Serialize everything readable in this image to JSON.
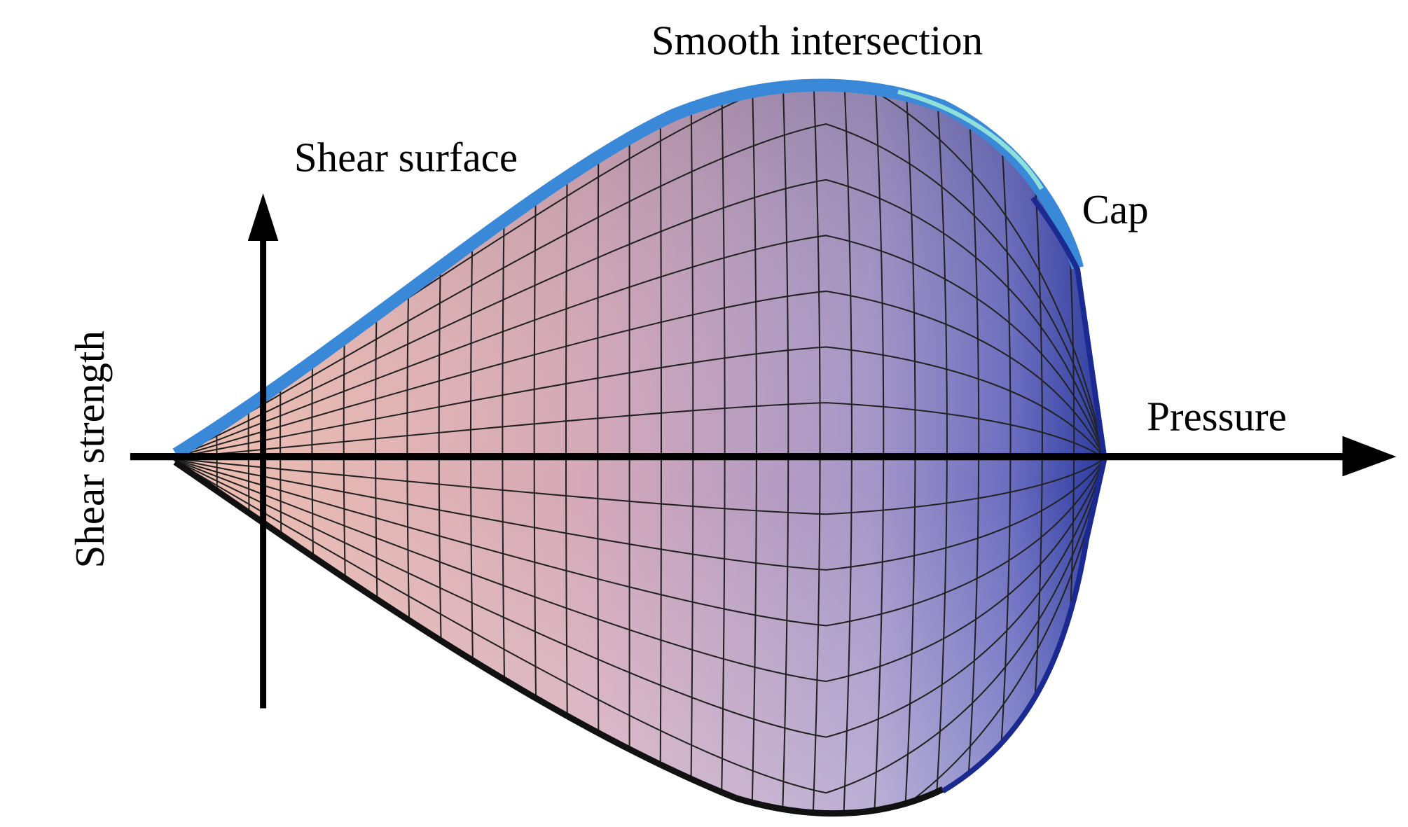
{
  "labels": {
    "top": "Smooth intersection",
    "left_surface": "Shear surface",
    "cap": "Cap",
    "x_axis": "Pressure",
    "y_axis": "Shear strength"
  }
}
